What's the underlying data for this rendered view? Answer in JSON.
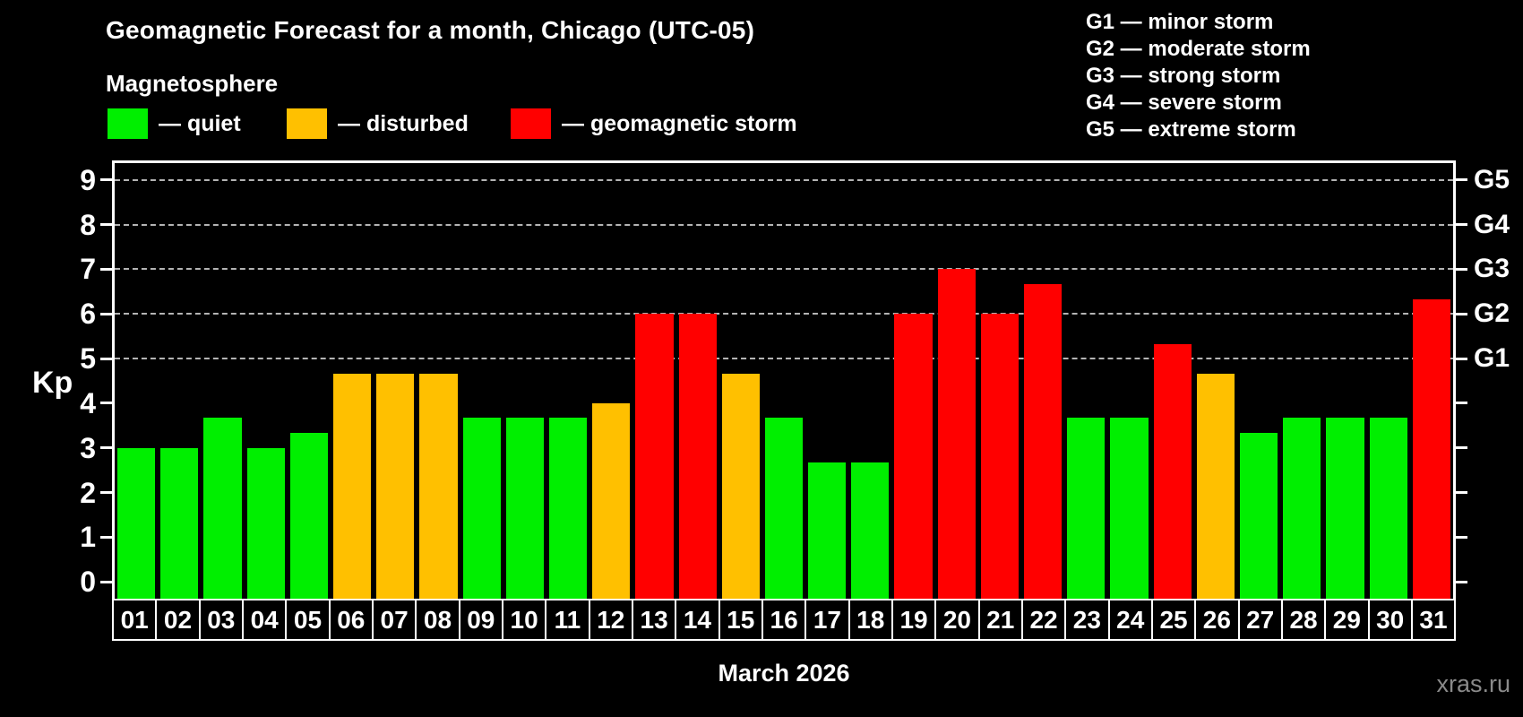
{
  "title": "Geomagnetic Forecast for a month, Chicago (UTC-05)",
  "subtitle": "Magnetosphere",
  "legend": {
    "quiet_label": "— quiet",
    "disturbed_label": "— disturbed",
    "storm_label": "— geomagnetic storm"
  },
  "g_legend": [
    "G1 — minor storm",
    "G2 — moderate storm",
    "G3 — strong storm",
    "G4 — severe storm",
    "G5 — extreme storm"
  ],
  "colors": {
    "quiet": "#00ef00",
    "disturbed": "#ffc000",
    "storm": "#ff0000",
    "grid": "#b4b4b4",
    "axis": "#ffffff",
    "watermark": "#8a8a8a",
    "background": "#000000"
  },
  "y_axis": {
    "label": "Kp",
    "tick_labels": [
      "0",
      "1",
      "2",
      "3",
      "4",
      "5",
      "6",
      "7",
      "8",
      "9"
    ]
  },
  "right_axis": {
    "labels": [
      {
        "label": "G1",
        "kp": 5
      },
      {
        "label": "G2",
        "kp": 6
      },
      {
        "label": "G3",
        "kp": 7
      },
      {
        "label": "G4",
        "kp": 8
      },
      {
        "label": "G5",
        "kp": 9
      }
    ]
  },
  "x_label": "March 2026",
  "watermark": "xras.ru",
  "chart_data": {
    "type": "bar",
    "title": "Geomagnetic Forecast for a month, Chicago (UTC-05)",
    "xlabel": "March 2026",
    "ylabel": "Kp",
    "ylim": [
      0,
      9
    ],
    "grid": "dashed horizontal lines at Kp 5,6,7,8,9 (G1–G5)",
    "legend_position": "top-left",
    "categories": [
      "01",
      "02",
      "03",
      "04",
      "05",
      "06",
      "07",
      "08",
      "09",
      "10",
      "11",
      "12",
      "13",
      "14",
      "15",
      "16",
      "17",
      "18",
      "19",
      "20",
      "21",
      "22",
      "23",
      "24",
      "25",
      "26",
      "27",
      "28",
      "29",
      "30",
      "31"
    ],
    "values": [
      3.0,
      3.0,
      3.67,
      3.0,
      3.33,
      4.67,
      4.67,
      4.67,
      3.67,
      3.67,
      3.67,
      4.0,
      6.0,
      6.0,
      4.67,
      3.67,
      2.67,
      2.67,
      6.0,
      7.0,
      6.0,
      6.67,
      3.67,
      3.67,
      5.33,
      4.67,
      3.33,
      3.67,
      3.67,
      3.67,
      6.33
    ],
    "levels": [
      "quiet",
      "quiet",
      "quiet",
      "quiet",
      "quiet",
      "disturbed",
      "disturbed",
      "disturbed",
      "quiet",
      "quiet",
      "quiet",
      "disturbed",
      "storm",
      "storm",
      "disturbed",
      "quiet",
      "quiet",
      "quiet",
      "storm",
      "storm",
      "storm",
      "storm",
      "quiet",
      "quiet",
      "storm",
      "disturbed",
      "quiet",
      "quiet",
      "quiet",
      "quiet",
      "storm"
    ],
    "gridlines_kp": [
      5,
      6,
      7,
      8,
      9
    ]
  }
}
